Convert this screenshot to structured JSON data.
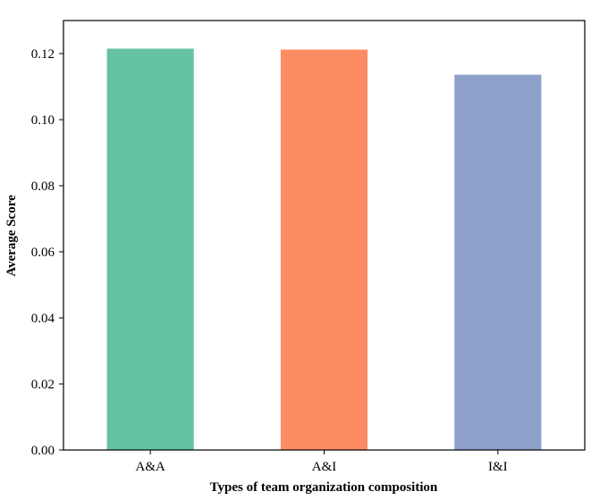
{
  "chart_data": {
    "type": "bar",
    "categories": [
      "A&A",
      "A&I",
      "I&I"
    ],
    "values": [
      0.1215,
      0.1212,
      0.1136
    ],
    "colors": [
      "#66c2a5",
      "#fc8d62",
      "#8da0cb"
    ],
    "xlabel": "Types of team organization composition",
    "ylabel": "Average Score",
    "ylim": [
      0,
      0.13
    ],
    "yticks": [
      "0.00",
      "0.02",
      "0.04",
      "0.06",
      "0.08",
      "0.10",
      "0.12"
    ],
    "grid": false
  }
}
